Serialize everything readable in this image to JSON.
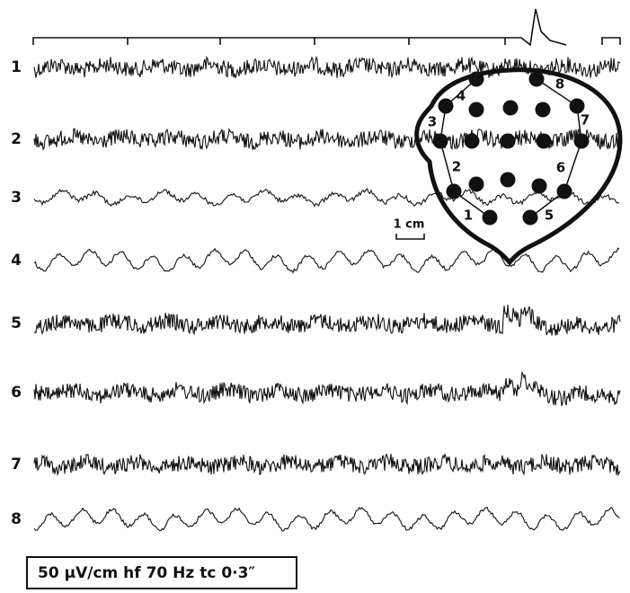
{
  "channels": [
    "1",
    "2",
    "3",
    "4",
    "5",
    "6",
    "7",
    "8"
  ],
  "head": {
    "electrode_labels": [
      "1",
      "2",
      "3",
      "4",
      "5",
      "6",
      "7",
      "8"
    ]
  },
  "scale_label": "1 cm",
  "caption": "50 μV/cm hf 70 Hz tc 0·3″"
}
